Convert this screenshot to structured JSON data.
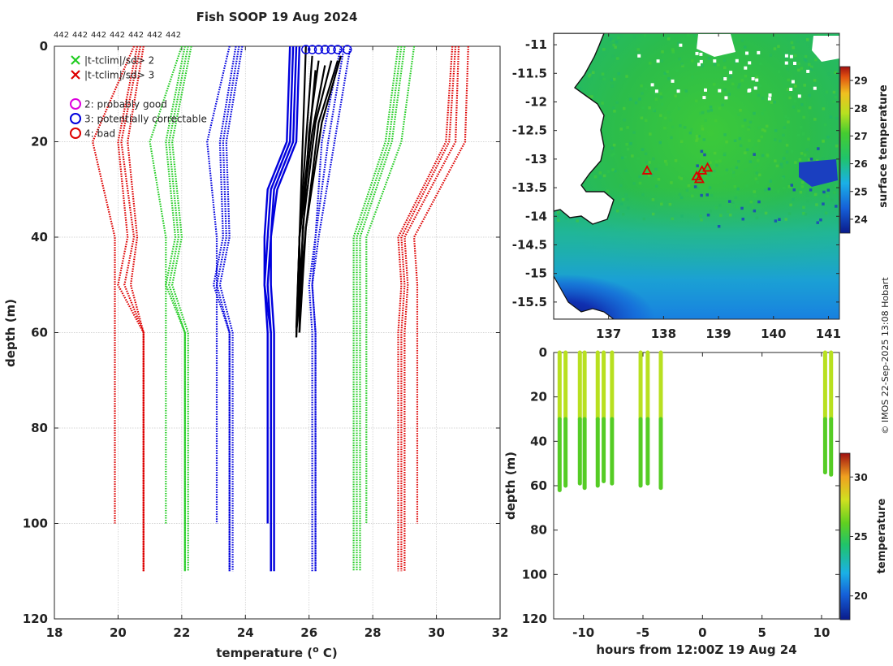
{
  "title": "Fish SOOP 19 Aug 2024",
  "stamp": "© IMOS 22-Sep-2025 13:08 Hobart",
  "chart_data": [
    {
      "type": "line",
      "name": "temperature-depth profiles",
      "title": "Fish SOOP 19 Aug 2024",
      "xlabel": "temperature (",
      "xlabel_sup": "o",
      "xlabel_tail": " C)",
      "ylabel": "depth (m)",
      "xlim": [
        18,
        32
      ],
      "ylim": [
        120,
        0
      ],
      "xticks": [
        18,
        20,
        22,
        24,
        26,
        28,
        30,
        32
      ],
      "yticks": [
        0,
        20,
        40,
        60,
        80,
        100,
        120
      ],
      "top_labels": [
        "442",
        "442",
        "442",
        "442",
        "442",
        "442",
        "442"
      ],
      "legend": {
        "placement": "top-left",
        "entries": [
          {
            "symbol": "x",
            "color": "#22cc22",
            "label": "|t-tclim|/sd> 2"
          },
          {
            "symbol": "x",
            "color": "#dd0000",
            "label": "|t-tclim|/sd> 3"
          },
          {
            "symbol": "o",
            "color": "#dd00dd",
            "label": "2: probably good"
          },
          {
            "symbol": "o",
            "color": "#0000dd",
            "label": "3: potentially correctable"
          },
          {
            "symbol": "o",
            "color": "#dd0000",
            "label": "4: bad"
          }
        ]
      },
      "depths": [
        0,
        20,
        40,
        50,
        60,
        110
      ],
      "climatology_series": [
        {
          "name": "clim-red-low-outer",
          "color": "#dd0000",
          "values": [
            20.5,
            19.2,
            19.9,
            19.9,
            19.9,
            19.9
          ],
          "end_depth": 100
        },
        {
          "name": "clim-red-low-1",
          "color": "#dd0000",
          "values": [
            20.6,
            20.0,
            20.3,
            20.0,
            20.8,
            20.8
          ]
        },
        {
          "name": "clim-red-low-2",
          "color": "#dd0000",
          "values": [
            20.7,
            20.1,
            20.5,
            20.2,
            20.8,
            20.8
          ]
        },
        {
          "name": "clim-red-low-3",
          "color": "#dd0000",
          "values": [
            20.8,
            20.3,
            20.6,
            20.4,
            20.8,
            20.8
          ]
        },
        {
          "name": "clim-green-low-outer",
          "color": "#22cc22",
          "values": [
            22.0,
            21.0,
            21.5,
            21.5,
            21.5,
            21.5
          ],
          "end_depth": 100
        },
        {
          "name": "clim-green-low-1",
          "color": "#22cc22",
          "values": [
            22.1,
            21.5,
            21.8,
            21.5,
            22.1,
            22.1
          ]
        },
        {
          "name": "clim-green-low-2",
          "color": "#22cc22",
          "values": [
            22.2,
            21.6,
            21.9,
            21.6,
            22.1,
            22.1
          ]
        },
        {
          "name": "clim-green-low-3",
          "color": "#22cc22",
          "values": [
            22.3,
            21.7,
            22.0,
            21.7,
            22.2,
            22.2
          ]
        },
        {
          "name": "clim-blue-low-outer",
          "color": "#0000dd",
          "values": [
            23.5,
            22.8,
            23.1,
            23.1,
            23.1,
            23.1
          ],
          "end_depth": 100
        },
        {
          "name": "clim-blue-low-1",
          "color": "#0000dd",
          "values": [
            23.7,
            23.2,
            23.3,
            23.0,
            23.5,
            23.5
          ]
        },
        {
          "name": "clim-blue-low-2",
          "color": "#0000dd",
          "values": [
            23.8,
            23.3,
            23.4,
            23.1,
            23.5,
            23.5
          ]
        },
        {
          "name": "clim-blue-low-3",
          "color": "#0000dd",
          "values": [
            23.9,
            23.4,
            23.5,
            23.2,
            23.6,
            23.6
          ]
        },
        {
          "name": "clim-blue-high-1",
          "color": "#0000dd",
          "values": [
            27.0,
            26.4,
            26.2,
            26.0,
            26.1,
            26.1
          ]
        },
        {
          "name": "clim-blue-high-2",
          "color": "#0000dd",
          "values": [
            27.1,
            26.6,
            26.2,
            26.1,
            26.2,
            26.2
          ]
        },
        {
          "name": "clim-blue-high-3",
          "color": "#0000dd",
          "values": [
            27.3,
            26.8,
            26.3,
            26.1,
            26.2,
            26.2
          ]
        },
        {
          "name": "clim-green-high-1",
          "color": "#22cc22",
          "values": [
            28.8,
            28.4,
            27.4,
            27.4,
            27.4,
            27.4
          ]
        },
        {
          "name": "clim-green-high-2",
          "color": "#22cc22",
          "values": [
            28.9,
            28.5,
            27.5,
            27.5,
            27.5,
            27.5
          ]
        },
        {
          "name": "clim-green-high-3",
          "color": "#22cc22",
          "values": [
            29.0,
            28.6,
            27.6,
            27.6,
            27.6,
            27.6
          ]
        },
        {
          "name": "clim-green-high-outer",
          "color": "#22cc22",
          "values": [
            29.3,
            28.9,
            27.8,
            27.8,
            27.8,
            27.8
          ],
          "end_depth": 100
        },
        {
          "name": "clim-red-high-1",
          "color": "#dd0000",
          "values": [
            30.5,
            30.3,
            28.8,
            28.9,
            28.8,
            28.8
          ]
        },
        {
          "name": "clim-red-high-2",
          "color": "#dd0000",
          "values": [
            30.6,
            30.4,
            28.9,
            29.0,
            28.9,
            28.9
          ]
        },
        {
          "name": "clim-red-high-3",
          "color": "#dd0000",
          "values": [
            30.7,
            30.6,
            29.0,
            29.1,
            29.0,
            29.0
          ]
        },
        {
          "name": "clim-red-high-outer",
          "color": "#dd0000",
          "values": [
            31.0,
            30.9,
            29.3,
            29.4,
            29.4,
            29.4
          ],
          "end_depth": 100
        }
      ],
      "blue_series": [
        {
          "name": "blue-1",
          "points": [
            [
              25.4,
              0
            ],
            [
              25.3,
              20
            ],
            [
              24.7,
              30
            ],
            [
              24.6,
              40
            ],
            [
              24.6,
              50
            ],
            [
              24.7,
              60
            ],
            [
              24.7,
              100
            ]
          ]
        },
        {
          "name": "blue-2",
          "points": [
            [
              25.5,
              0
            ],
            [
              25.4,
              20
            ],
            [
              24.8,
              30
            ],
            [
              24.7,
              40
            ],
            [
              24.6,
              50
            ],
            [
              24.8,
              60
            ],
            [
              24.8,
              110
            ]
          ]
        },
        {
          "name": "blue-3",
          "points": [
            [
              25.6,
              0
            ],
            [
              25.5,
              20
            ],
            [
              24.9,
              30
            ],
            [
              24.8,
              40
            ],
            [
              24.7,
              50
            ],
            [
              24.8,
              60
            ],
            [
              24.8,
              110
            ]
          ]
        },
        {
          "name": "blue-4",
          "points": [
            [
              25.7,
              0
            ],
            [
              25.6,
              20
            ],
            [
              25.0,
              30
            ],
            [
              24.8,
              40
            ],
            [
              24.8,
              50
            ],
            [
              24.9,
              60
            ],
            [
              24.9,
              110
            ]
          ]
        }
      ],
      "black_series": [
        {
          "name": "black-1",
          "points": [
            [
              25.9,
              0
            ],
            [
              25.8,
              20
            ],
            [
              25.7,
              40
            ],
            [
              25.6,
              61
            ]
          ]
        },
        {
          "name": "black-2",
          "points": [
            [
              26.1,
              2
            ],
            [
              25.9,
              20
            ],
            [
              25.7,
              40
            ],
            [
              25.7,
              60
            ]
          ]
        },
        {
          "name": "black-3",
          "points": [
            [
              26.3,
              3
            ],
            [
              26.0,
              18
            ],
            [
              25.8,
              40
            ],
            [
              25.6,
              60
            ]
          ]
        },
        {
          "name": "black-4",
          "points": [
            [
              26.5,
              4
            ],
            [
              26.1,
              18
            ],
            [
              25.7,
              40
            ],
            [
              25.6,
              59
            ]
          ]
        },
        {
          "name": "black-5",
          "points": [
            [
              26.7,
              3
            ],
            [
              26.2,
              16
            ],
            [
              25.8,
              38
            ],
            [
              25.7,
              60
            ]
          ]
        },
        {
          "name": "black-6",
          "points": [
            [
              26.9,
              3
            ],
            [
              26.3,
              16
            ],
            [
              25.9,
              38
            ],
            [
              25.7,
              60
            ]
          ]
        },
        {
          "name": "black-7",
          "points": [
            [
              27.0,
              2
            ],
            [
              26.4,
              16
            ],
            [
              25.9,
              38
            ],
            [
              25.6,
              60
            ]
          ]
        },
        {
          "name": "black-8",
          "points": [
            [
              26.2,
              5
            ],
            [
              26.0,
              20
            ],
            [
              25.7,
              40
            ],
            [
              25.6,
              61
            ]
          ]
        }
      ],
      "surface_flags": [
        25.9,
        26.1,
        26.3,
        26.5,
        26.7,
        26.9,
        27.2
      ]
    },
    {
      "type": "heatmap",
      "name": "sea surface temperature map",
      "xlim": [
        136.0,
        141.2
      ],
      "ylim": [
        -15.8,
        -10.8
      ],
      "xticks": [
        137,
        138,
        139,
        140,
        141
      ],
      "yticks": [
        -11,
        -11.5,
        -12,
        -12.5,
        -13,
        -13.5,
        -14,
        -14.5,
        -15,
        -15.5
      ],
      "colorbar": {
        "label": "surface temperature",
        "range": [
          23.5,
          29.5
        ],
        "ticks": [
          24,
          25,
          26,
          27,
          28,
          29
        ]
      },
      "markers": [
        {
          "lon": 137.7,
          "lat": -13.2
        },
        {
          "lon": 138.6,
          "lat": -13.3
        },
        {
          "lon": 138.7,
          "lat": -13.2
        },
        {
          "lon": 138.8,
          "lat": -13.15
        },
        {
          "lon": 138.65,
          "lat": -13.35
        }
      ]
    },
    {
      "type": "scatter",
      "name": "depth-time section",
      "xlabel": "hours from 12:00Z 19 Aug 24",
      "ylabel": "depth (m)",
      "xlim": [
        -12.5,
        11.5
      ],
      "ylim": [
        120,
        0
      ],
      "xticks": [
        -10,
        -5,
        0,
        5,
        10
      ],
      "yticks": [
        0,
        20,
        40,
        60,
        80,
        100,
        120
      ],
      "colorbar": {
        "label": "temperature",
        "range": [
          18,
          32
        ],
        "ticks": [
          20,
          25,
          30
        ]
      },
      "casts": [
        {
          "hour": -12.0,
          "max_depth": 62
        },
        {
          "hour": -11.5,
          "max_depth": 60
        },
        {
          "hour": -10.3,
          "max_depth": 59
        },
        {
          "hour": -9.9,
          "max_depth": 61
        },
        {
          "hour": -8.8,
          "max_depth": 60
        },
        {
          "hour": -8.3,
          "max_depth": 58
        },
        {
          "hour": -7.6,
          "max_depth": 59
        },
        {
          "hour": -5.2,
          "max_depth": 60
        },
        {
          "hour": -4.6,
          "max_depth": 59
        },
        {
          "hour": -3.5,
          "max_depth": 61
        },
        {
          "hour": 10.3,
          "max_depth": 54
        },
        {
          "hour": 10.8,
          "max_depth": 55
        }
      ]
    }
  ]
}
